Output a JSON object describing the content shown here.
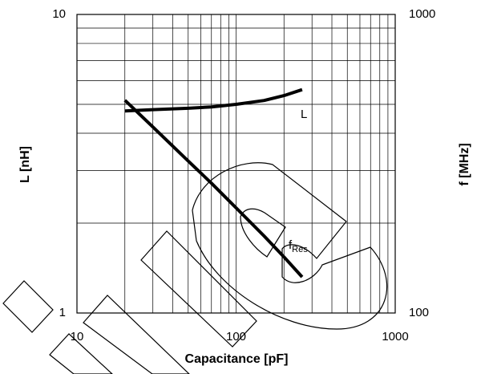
{
  "chart_data": {
    "type": "line",
    "xlabel": "Capacitance [pF]",
    "ylabel": "L [nH]",
    "y2label": "f [MHz]",
    "xscale": "log",
    "yscale": "log",
    "y2scale": "log",
    "grid": true,
    "xlim": [
      10,
      1000
    ],
    "xticks": [
      10,
      100,
      1000
    ],
    "xminor": [
      20,
      30,
      40,
      50,
      60,
      70,
      80,
      90,
      200,
      300,
      400,
      500,
      600,
      700,
      800,
      900
    ],
    "ylim": [
      1,
      10
    ],
    "yticks": [
      1,
      10
    ],
    "yminor": [
      2,
      3,
      4,
      5,
      6,
      7,
      8,
      9
    ],
    "y2lim": [
      100,
      1000
    ],
    "y2ticks": [
      100,
      1000
    ],
    "x": [
      20,
      30,
      50,
      70,
      100,
      150,
      200,
      260
    ],
    "series": [
      {
        "name": "L",
        "color": "#000000",
        "values": [
          4.75,
          4.8,
          4.85,
          4.9,
          5.0,
          5.15,
          5.35,
          5.6
        ]
      },
      {
        "name": "f",
        "subscript": "Res",
        "color": "#000000",
        "axis": "y2",
        "values": [
          516,
          420,
          323,
          272,
          225,
          181,
          154,
          132
        ]
      }
    ]
  }
}
